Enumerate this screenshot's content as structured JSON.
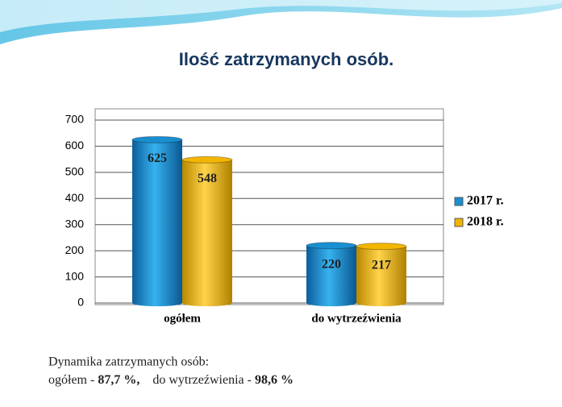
{
  "chart_data": {
    "type": "bar",
    "title": "Ilość zatrzymanych osób.",
    "categories": [
      "ogółem",
      "do wytrzeźwienia"
    ],
    "series": [
      {
        "name": "2017 r.",
        "color": "#1a8fd0",
        "values": [
          625,
          220
        ]
      },
      {
        "name": "2018 r.",
        "color": "#f2b600",
        "values": [
          548,
          217
        ]
      }
    ],
    "ylim": [
      0,
      700
    ],
    "yticks": [
      0,
      100,
      200,
      300,
      400,
      500,
      600,
      700
    ],
    "grid": true,
    "legend": "right"
  },
  "notes": {
    "heading": "Dynamika zatrzymanych osób:",
    "items": [
      {
        "label": "ogółem  -",
        "value": "87,7 %,"
      },
      {
        "label": "do wytrzeźwienia  -",
        "value": "98,6 %"
      }
    ]
  }
}
